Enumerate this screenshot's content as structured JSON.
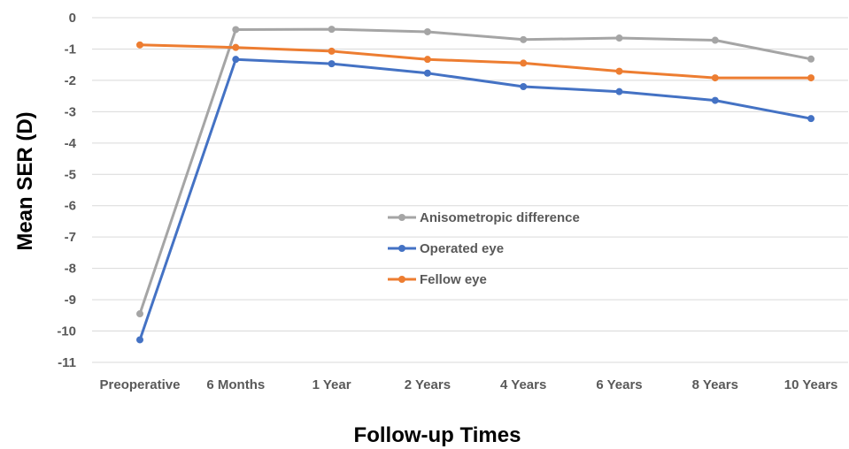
{
  "chart_data": {
    "type": "line",
    "categories": [
      "Preoperative",
      "6 Months",
      "1 Year",
      "2 Years",
      "4 Years",
      "6 Years",
      "8 Years",
      "10 Years"
    ],
    "series": [
      {
        "name": "Anisometropic difference",
        "color": "#a5a5a5",
        "values": [
          -9.45,
          -0.38,
          -0.37,
          -0.45,
          -0.7,
          -0.65,
          -0.72,
          -1.32
        ]
      },
      {
        "name": "Operated eye",
        "color": "#4472c4",
        "values": [
          -10.28,
          -1.33,
          -1.47,
          -1.77,
          -2.2,
          -2.36,
          -2.64,
          -3.22
        ]
      },
      {
        "name": "Fellow eye",
        "color": "#ed7d31",
        "values": [
          -0.87,
          -0.95,
          -1.07,
          -1.33,
          -1.45,
          -1.71,
          -1.92,
          -1.92
        ]
      }
    ],
    "xlabel": "Follow-up Times",
    "ylabel": "Mean SER (D)",
    "ylim": [
      -11,
      0
    ],
    "yticks": [
      "0",
      "-1",
      "-2",
      "-3",
      "-4",
      "-5",
      "-6",
      "-7",
      "-8",
      "-9",
      "-10",
      "-11"
    ],
    "grid": true,
    "legend_position": "center-right"
  }
}
